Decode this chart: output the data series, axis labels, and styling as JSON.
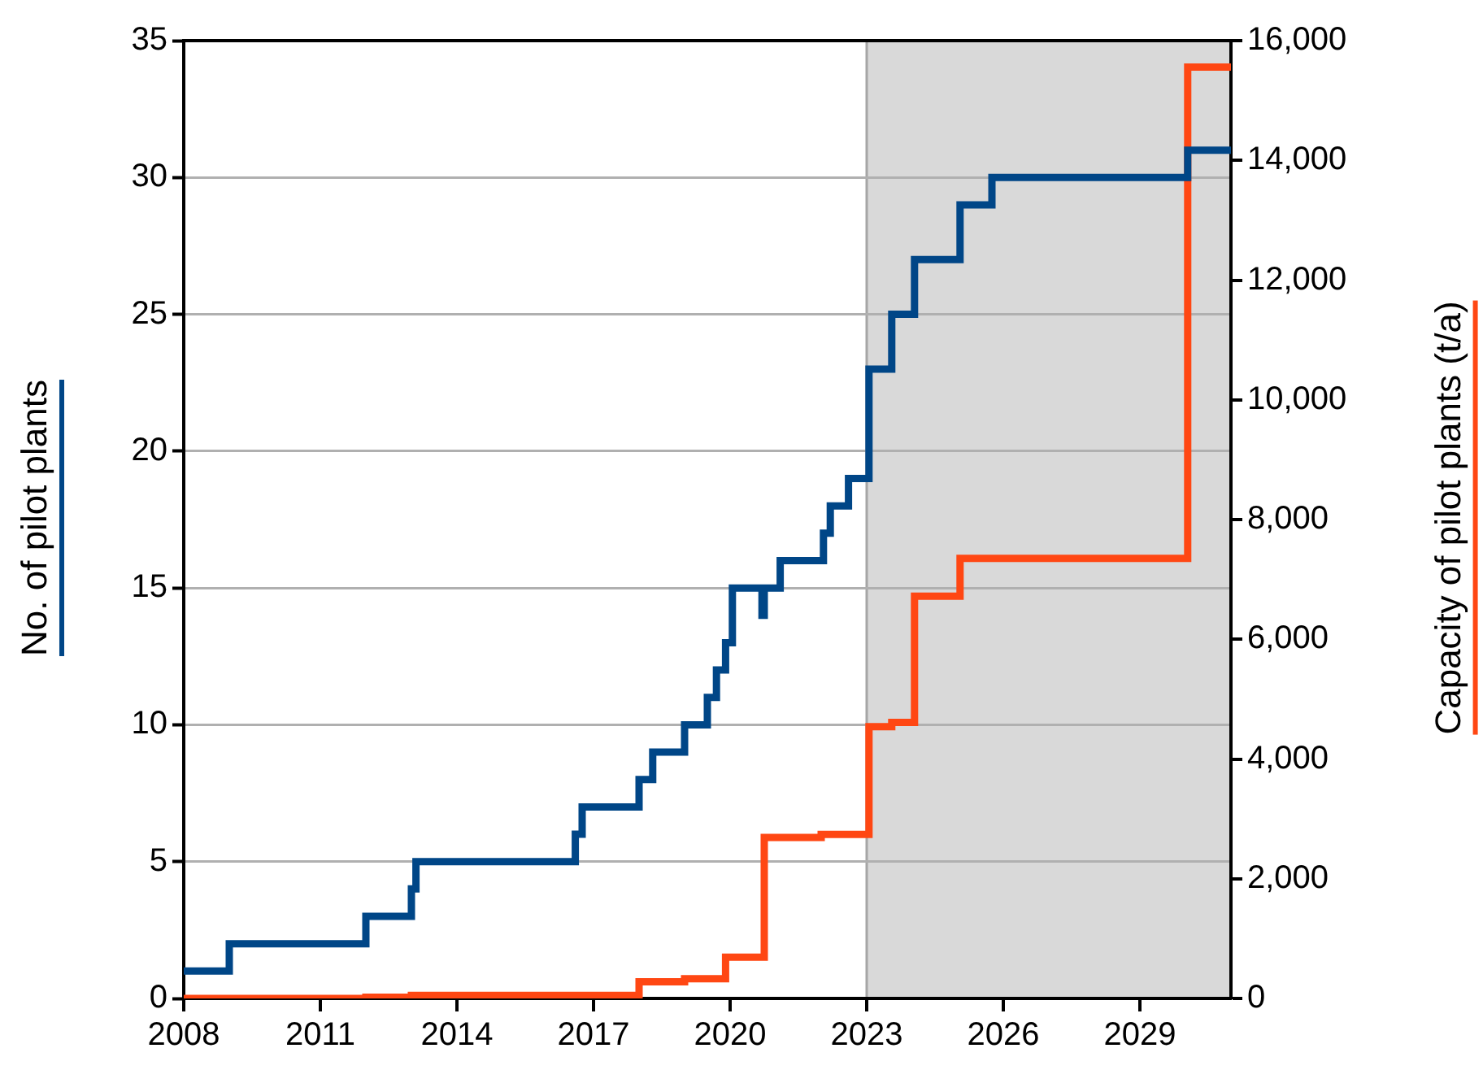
{
  "chart_data": {
    "type": "step",
    "ylabel": "No. of pilot plants",
    "y2label": "Capacity of pilot plants (t/a)",
    "xlim": [
      2008,
      2031
    ],
    "xticks": [
      2008,
      2011,
      2014,
      2017,
      2020,
      2023,
      2026,
      2029
    ],
    "ylim": [
      0,
      35
    ],
    "yticks": [
      0,
      5,
      10,
      15,
      20,
      25,
      30,
      35
    ],
    "y2lim": [
      0,
      16000
    ],
    "y2ticks": [
      {
        "value": 0,
        "label": "0"
      },
      {
        "value": 2000,
        "label": "2,000"
      },
      {
        "value": 4000,
        "label": "4,000"
      },
      {
        "value": 6000,
        "label": "6,000"
      },
      {
        "value": 8000,
        "label": "8,000"
      },
      {
        "value": 10000,
        "label": "10,000"
      },
      {
        "value": 12000,
        "label": "12,000"
      },
      {
        "value": 14000,
        "label": "14,000"
      },
      {
        "value": 16000,
        "label": "16,000"
      }
    ],
    "grid": "y",
    "legend": false,
    "marker": "none",
    "line_style": "solid",
    "bands": [
      {
        "axis": "x",
        "from": 2023,
        "to": 2031,
        "color": "#d9d9d9"
      }
    ],
    "ref_lines": [
      {
        "axis": "x",
        "value": 2023,
        "color": "#a6a6a6"
      }
    ],
    "series": [
      {
        "color": "#004687",
        "axis": "y",
        "x": [
          2008,
          2009,
          2012,
          2013,
          2013.1,
          2016.6,
          2016.75,
          2018,
          2018.3,
          2019,
          2019.5,
          2019.7,
          2019.9,
          2020.05,
          2020.7,
          2020.75,
          2021.1,
          2022.05,
          2022.2,
          2022.6,
          2023.05,
          2023.55,
          2024.05,
          2025.05,
          2025.75,
          2030.05,
          2031
        ],
        "values": [
          1,
          2,
          3,
          4,
          5,
          6,
          7,
          8,
          9,
          10,
          11,
          12,
          13,
          15,
          14,
          15,
          16,
          17,
          18,
          19,
          23,
          25,
          27,
          29,
          30,
          31,
          31
        ]
      },
      {
        "color": "#ff4713",
        "axis": "y2",
        "x": [
          2008,
          2012,
          2013,
          2018,
          2019,
          2019.9,
          2020.75,
          2022,
          2023.05,
          2023.55,
          2024.05,
          2025.05,
          2030.05,
          2031
        ],
        "values": [
          0,
          20,
          50,
          280,
          330,
          690,
          2690,
          2740,
          4540,
          4610,
          6720,
          7350,
          15560,
          15560
        ]
      }
    ]
  }
}
